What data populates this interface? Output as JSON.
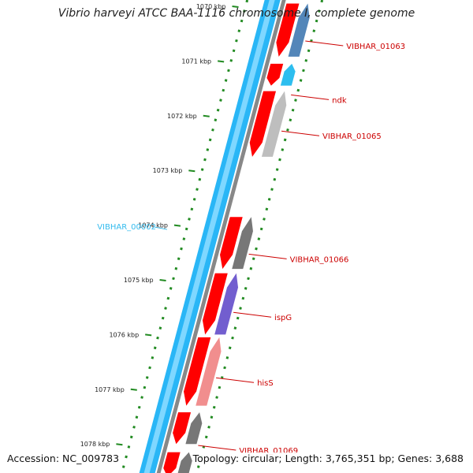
{
  "title": "Vibrio harveyi ATCC BAA-1116 chromosome I, complete genome",
  "accession": "Accession: NC_009783",
  "topology": "Topology: circular; Length: 3,765,351 bp; Genes: 3,688",
  "ticks": [
    {
      "label": "1070 kbp",
      "kbp": 1070
    },
    {
      "label": "1071 kbp",
      "kbp": 1071
    },
    {
      "label": "1072 kbp",
      "kbp": 1072
    },
    {
      "label": "1073 kbp",
      "kbp": 1073
    },
    {
      "label": "1074 kbp",
      "kbp": 1074
    },
    {
      "label": "1075 kbp",
      "kbp": 1075
    },
    {
      "label": "1076 kbp",
      "kbp": 1076
    },
    {
      "label": "1077 kbp",
      "kbp": 1077
    },
    {
      "label": "1078 kbp",
      "kbp": 1078
    }
  ],
  "genes": [
    {
      "name": "VIBHAR_01063",
      "start_kbp": 1069.95,
      "end_kbp": 1070.92,
      "color": "#4a7fb5",
      "label_color": "#cc0000"
    },
    {
      "name": "ndk",
      "start_kbp": 1071.05,
      "end_kbp": 1071.45,
      "color": "#22bbee",
      "label_color": "#cc0000"
    },
    {
      "name": "VIBHAR_01065",
      "start_kbp": 1071.55,
      "end_kbp": 1072.75,
      "color": "#bbbbbb",
      "label_color": "#cc0000"
    },
    {
      "name": "VIBHAR_01066",
      "start_kbp": 1073.85,
      "end_kbp": 1074.8,
      "color": "#707070",
      "label_color": "#cc0000"
    },
    {
      "name": "ispG",
      "start_kbp": 1074.88,
      "end_kbp": 1076.0,
      "color": "#6a55cc",
      "label_color": "#cc0000"
    },
    {
      "name": "hisS",
      "start_kbp": 1076.05,
      "end_kbp": 1077.3,
      "color": "#f08888",
      "label_color": "#cc0000"
    },
    {
      "name": "VIBHAR_01069",
      "start_kbp": 1077.42,
      "end_kbp": 1078.0,
      "color": "#707070",
      "label_color": "#cc0000"
    },
    {
      "name": "",
      "start_kbp": 1078.15,
      "end_kbp": 1078.6,
      "color": "#707070",
      "label_color": "#cc0000"
    }
  ],
  "other_features": [
    {
      "name": "VIBHAR_00002",
      "kbp": 1074.05,
      "color": "#33bbee"
    }
  ],
  "colors": {
    "cds_red": "#ff0000",
    "backbone_blue": "#29b6f6",
    "backbone_gray": "#888888",
    "gc_green": "#228b22"
  }
}
